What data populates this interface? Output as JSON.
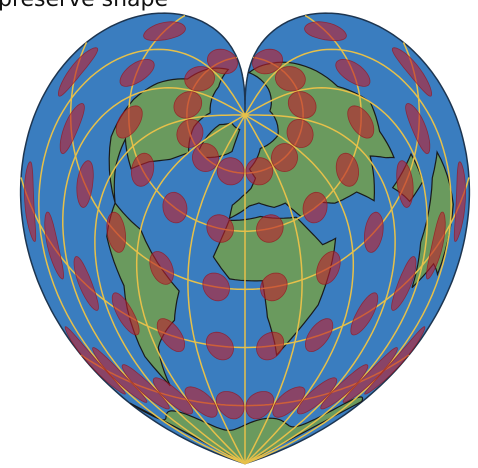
{
  "title": "preserve shape"
}
